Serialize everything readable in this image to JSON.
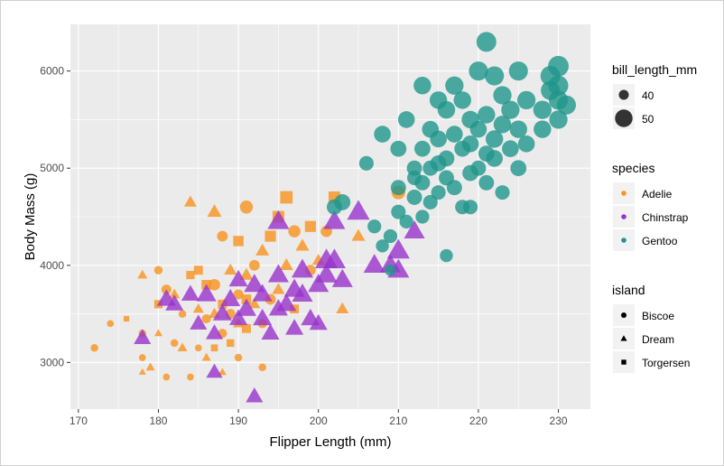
{
  "chart_data": {
    "type": "scatter",
    "title": "",
    "xlabel": "Flipper Length (mm)",
    "ylabel": "Body Mass (g)",
    "xlim": [
      169,
      234
    ],
    "ylim": [
      2520,
      6480
    ],
    "x_ticks": [
      170,
      180,
      190,
      200,
      210,
      220,
      230
    ],
    "y_ticks": [
      3000,
      4000,
      5000,
      6000
    ],
    "grid": true,
    "legend_position": "right",
    "colors": {
      "Adelie": "#F7931E",
      "Chinstrap": "#9933CC",
      "Gentoo": "#1F968B",
      "panel": "#EBEBEB",
      "grid": "#FFFFFF"
    },
    "legends": {
      "size": {
        "title": "bill_length_mm",
        "entries": [
          {
            "label": "40",
            "value": 40
          },
          {
            "label": "50",
            "value": 50
          }
        ]
      },
      "color": {
        "title": "species",
        "entries": [
          "Adelie",
          "Chinstrap",
          "Gentoo"
        ]
      },
      "shape": {
        "title": "island",
        "entries": [
          {
            "label": "Biscoe",
            "shape": "circle"
          },
          {
            "label": "Dream",
            "shape": "triangle"
          },
          {
            "label": "Torgersen",
            "shape": "square"
          }
        ]
      }
    },
    "series": [
      {
        "name": "Adelie",
        "points": [
          [
            172,
            3150,
            37,
            "Biscoe"
          ],
          [
            174,
            3400,
            36,
            "Biscoe"
          ],
          [
            176,
            3450,
            35,
            "Torgersen"
          ],
          [
            178,
            3300,
            37,
            "Biscoe"
          ],
          [
            178,
            3900,
            38,
            "Dream"
          ],
          [
            178,
            3050,
            36,
            "Biscoe"
          ],
          [
            178,
            2900,
            35,
            "Dream"
          ],
          [
            179,
            2950,
            37,
            "Dream"
          ],
          [
            180,
            3950,
            38,
            "Biscoe"
          ],
          [
            180,
            3600,
            39,
            "Torgersen"
          ],
          [
            180,
            3300,
            36,
            "Dream"
          ],
          [
            181,
            3750,
            40,
            "Biscoe"
          ],
          [
            181,
            2850,
            36,
            "Biscoe"
          ],
          [
            182,
            3200,
            37,
            "Biscoe"
          ],
          [
            182,
            3700,
            39,
            "Dream"
          ],
          [
            183,
            3150,
            38,
            "Dream"
          ],
          [
            183,
            3500,
            37,
            "Biscoe"
          ],
          [
            184,
            3900,
            39,
            "Torgersen"
          ],
          [
            184,
            2850,
            36,
            "Biscoe"
          ],
          [
            184,
            4650,
            41,
            "Dream"
          ],
          [
            185,
            3950,
            40,
            "Torgersen"
          ],
          [
            185,
            3550,
            39,
            "Dream"
          ],
          [
            185,
            3150,
            36,
            "Biscoe"
          ],
          [
            186,
            3800,
            41,
            "Torgersen"
          ],
          [
            186,
            3450,
            39,
            "Biscoe"
          ],
          [
            186,
            3050,
            37,
            "Dream"
          ],
          [
            187,
            3500,
            40,
            "Dream"
          ],
          [
            187,
            3800,
            42,
            "Biscoe"
          ],
          [
            187,
            3150,
            37,
            "Torgersen"
          ],
          [
            187,
            4550,
            43,
            "Dream"
          ],
          [
            188,
            3300,
            39,
            "Biscoe"
          ],
          [
            188,
            3600,
            40,
            "Torgersen"
          ],
          [
            188,
            4300,
            41,
            "Biscoe"
          ],
          [
            188,
            2900,
            36,
            "Dream"
          ],
          [
            189,
            3500,
            40,
            "Biscoe"
          ],
          [
            189,
            3200,
            38,
            "Torgersen"
          ],
          [
            189,
            3950,
            41,
            "Dream"
          ],
          [
            190,
            4250,
            42,
            "Torgersen"
          ],
          [
            190,
            3700,
            40,
            "Biscoe"
          ],
          [
            190,
            3400,
            39,
            "Dream"
          ],
          [
            190,
            3050,
            37,
            "Biscoe"
          ],
          [
            191,
            3900,
            42,
            "Dream"
          ],
          [
            191,
            3650,
            41,
            "Torgersen"
          ],
          [
            191,
            4600,
            44,
            "Biscoe"
          ],
          [
            191,
            3350,
            40,
            "Torgersen"
          ],
          [
            192,
            4000,
            41,
            "Biscoe"
          ],
          [
            192,
            3600,
            40,
            "Dream"
          ],
          [
            193,
            3400,
            39,
            "Biscoe"
          ],
          [
            193,
            4150,
            42,
            "Dream"
          ],
          [
            193,
            2950,
            37,
            "Biscoe"
          ],
          [
            194,
            4300,
            43,
            "Torgersen"
          ],
          [
            194,
            3650,
            41,
            "Biscoe"
          ],
          [
            195,
            3750,
            41,
            "Dream"
          ],
          [
            195,
            4500,
            44,
            "Torgersen"
          ],
          [
            196,
            4700,
            45,
            "Torgersen"
          ],
          [
            196,
            4000,
            42,
            "Dream"
          ],
          [
            197,
            4350,
            43,
            "Biscoe"
          ],
          [
            197,
            3550,
            40,
            "Torgersen"
          ],
          [
            198,
            4200,
            42,
            "Dream"
          ],
          [
            199,
            3950,
            41,
            "Biscoe"
          ],
          [
            199,
            4400,
            43,
            "Torgersen"
          ],
          [
            200,
            4050,
            41,
            "Dream"
          ],
          [
            201,
            4350,
            42,
            "Biscoe"
          ],
          [
            202,
            4700,
            44,
            "Torgersen"
          ],
          [
            203,
            3550,
            41,
            "Dream"
          ],
          [
            205,
            4300,
            42,
            "Dream"
          ],
          [
            210,
            4750,
            45,
            "Biscoe"
          ]
        ]
      },
      {
        "name": "Chinstrap",
        "points": [
          [
            178,
            3250,
            46,
            "Dream"
          ],
          [
            181,
            3650,
            48,
            "Dream"
          ],
          [
            182,
            3600,
            47,
            "Dream"
          ],
          [
            184,
            3700,
            47,
            "Dream"
          ],
          [
            185,
            3400,
            46,
            "Dream"
          ],
          [
            186,
            3700,
            49,
            "Dream"
          ],
          [
            187,
            3300,
            46,
            "Dream"
          ],
          [
            187,
            2900,
            45,
            "Dream"
          ],
          [
            188,
            3500,
            48,
            "Dream"
          ],
          [
            189,
            3650,
            49,
            "Dream"
          ],
          [
            190,
            3450,
            47,
            "Dream"
          ],
          [
            190,
            3850,
            48,
            "Dream"
          ],
          [
            191,
            3550,
            49,
            "Dream"
          ],
          [
            192,
            2650,
            46,
            "Dream"
          ],
          [
            192,
            3800,
            50,
            "Dream"
          ],
          [
            193,
            3450,
            48,
            "Dream"
          ],
          [
            193,
            3700,
            49,
            "Dream"
          ],
          [
            194,
            3300,
            47,
            "Dream"
          ],
          [
            195,
            3900,
            50,
            "Dream"
          ],
          [
            195,
            3550,
            48,
            "Dream"
          ],
          [
            195,
            4450,
            51,
            "Dream"
          ],
          [
            196,
            3600,
            49,
            "Dream"
          ],
          [
            197,
            3750,
            50,
            "Dream"
          ],
          [
            197,
            3350,
            47,
            "Dream"
          ],
          [
            198,
            3950,
            51,
            "Dream"
          ],
          [
            198,
            3700,
            50,
            "Dream"
          ],
          [
            199,
            3450,
            48,
            "Dream"
          ],
          [
            200,
            3400,
            47,
            "Dream"
          ],
          [
            200,
            3800,
            50,
            "Dream"
          ],
          [
            201,
            4050,
            52,
            "Dream"
          ],
          [
            201,
            3900,
            51,
            "Dream"
          ],
          [
            202,
            4050,
            52,
            "Dream"
          ],
          [
            202,
            4450,
            51,
            "Dream"
          ],
          [
            203,
            3850,
            50,
            "Dream"
          ],
          [
            205,
            4550,
            52,
            "Dream"
          ],
          [
            207,
            4000,
            51,
            "Dream"
          ],
          [
            209,
            4000,
            50,
            "Dream"
          ],
          [
            210,
            4150,
            52,
            "Dream"
          ],
          [
            210,
            3950,
            51,
            "Dream"
          ],
          [
            212,
            4350,
            50,
            "Dream"
          ]
        ]
      },
      {
        "name": "Gentoo",
        "points": [
          [
            202,
            4600,
            47,
            "Biscoe"
          ],
          [
            203,
            4650,
            48,
            "Biscoe"
          ],
          [
            206,
            5050,
            46,
            "Biscoe"
          ],
          [
            207,
            4400,
            45,
            "Biscoe"
          ],
          [
            208,
            5350,
            49,
            "Biscoe"
          ],
          [
            208,
            4200,
            44,
            "Biscoe"
          ],
          [
            209,
            4300,
            45,
            "Biscoe"
          ],
          [
            209,
            3950,
            42,
            "Biscoe"
          ],
          [
            210,
            4550,
            46,
            "Biscoe"
          ],
          [
            210,
            4800,
            47,
            "Biscoe"
          ],
          [
            210,
            5200,
            48,
            "Biscoe"
          ],
          [
            211,
            4450,
            45,
            "Biscoe"
          ],
          [
            211,
            5500,
            49,
            "Biscoe"
          ],
          [
            212,
            4700,
            47,
            "Biscoe"
          ],
          [
            212,
            4900,
            46,
            "Biscoe"
          ],
          [
            213,
            4500,
            45,
            "Biscoe"
          ],
          [
            213,
            5200,
            48,
            "Biscoe"
          ],
          [
            213,
            4850,
            47,
            "Biscoe"
          ],
          [
            213,
            5850,
            50,
            "Biscoe"
          ],
          [
            214,
            4650,
            46,
            "Biscoe"
          ],
          [
            214,
            5000,
            47,
            "Biscoe"
          ],
          [
            214,
            5400,
            49,
            "Biscoe"
          ],
          [
            215,
            4750,
            46,
            "Biscoe"
          ],
          [
            215,
            5050,
            48,
            "Biscoe"
          ],
          [
            215,
            5300,
            49,
            "Biscoe"
          ],
          [
            215,
            5700,
            50,
            "Biscoe"
          ],
          [
            216,
            4100,
            44,
            "Biscoe"
          ],
          [
            216,
            4900,
            47,
            "Biscoe"
          ],
          [
            216,
            5100,
            48,
            "Biscoe"
          ],
          [
            216,
            5600,
            50,
            "Biscoe"
          ],
          [
            217,
            4800,
            47,
            "Biscoe"
          ],
          [
            217,
            5350,
            49,
            "Biscoe"
          ],
          [
            217,
            5850,
            51,
            "Biscoe"
          ],
          [
            218,
            4600,
            46,
            "Biscoe"
          ],
          [
            218,
            5200,
            48,
            "Biscoe"
          ],
          [
            218,
            5700,
            50,
            "Biscoe"
          ],
          [
            219,
            4950,
            48,
            "Biscoe"
          ],
          [
            219,
            5250,
            49,
            "Biscoe"
          ],
          [
            219,
            5500,
            50,
            "Biscoe"
          ],
          [
            220,
            5000,
            47,
            "Biscoe"
          ],
          [
            220,
            5400,
            49,
            "Biscoe"
          ],
          [
            220,
            6000,
            52,
            "Biscoe"
          ],
          [
            221,
            4850,
            47,
            "Biscoe"
          ],
          [
            221,
            5150,
            48,
            "Biscoe"
          ],
          [
            221,
            5550,
            50,
            "Biscoe"
          ],
          [
            221,
            6300,
            53,
            "Biscoe"
          ],
          [
            222,
            5100,
            49,
            "Biscoe"
          ],
          [
            222,
            5300,
            50,
            "Biscoe"
          ],
          [
            222,
            5950,
            52,
            "Biscoe"
          ],
          [
            223,
            5450,
            50,
            "Biscoe"
          ],
          [
            223,
            5750,
            51,
            "Biscoe"
          ],
          [
            224,
            5200,
            49,
            "Biscoe"
          ],
          [
            224,
            5600,
            51,
            "Biscoe"
          ],
          [
            225,
            5000,
            48,
            "Biscoe"
          ],
          [
            225,
            5400,
            50,
            "Biscoe"
          ],
          [
            225,
            6000,
            52,
            "Biscoe"
          ],
          [
            226,
            5250,
            49,
            "Biscoe"
          ],
          [
            226,
            5700,
            51,
            "Biscoe"
          ],
          [
            228,
            5400,
            50,
            "Biscoe"
          ],
          [
            228,
            5600,
            51,
            "Biscoe"
          ],
          [
            229,
            5800,
            52,
            "Biscoe"
          ],
          [
            229,
            5950,
            53,
            "Biscoe"
          ],
          [
            230,
            5500,
            51,
            "Biscoe"
          ],
          [
            230,
            5700,
            52,
            "Biscoe"
          ],
          [
            230,
            5850,
            53,
            "Biscoe"
          ],
          [
            230,
            6050,
            54,
            "Biscoe"
          ],
          [
            231,
            5650,
            52,
            "Biscoe"
          ],
          [
            223,
            4750,
            46,
            "Biscoe"
          ],
          [
            219,
            4600,
            46,
            "Biscoe"
          ],
          [
            212,
            5000,
            47,
            "Biscoe"
          ]
        ]
      }
    ]
  }
}
